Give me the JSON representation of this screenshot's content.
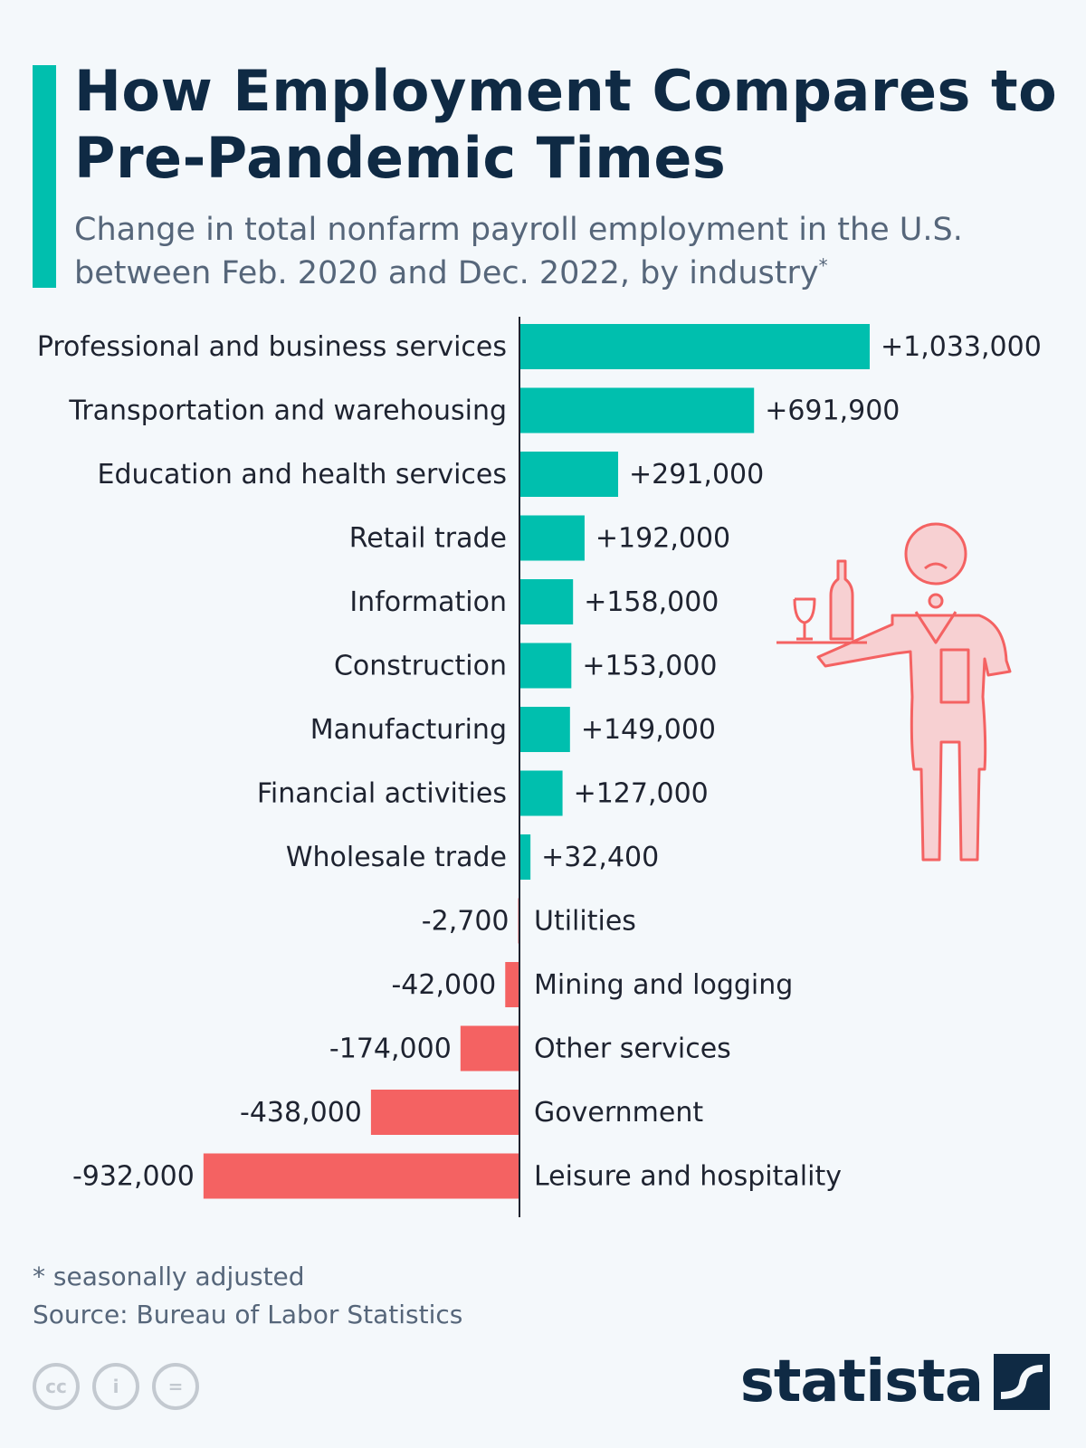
{
  "title": "How Employment Compares to Pre-Pandemic Times",
  "subtitle": "Change in total nonfarm payroll employment in the U.S. between Feb. 2020 and Dec. 2022, by industry",
  "subtitle_mark": "*",
  "colors": {
    "accent": "#00bfae",
    "positive": "#00bfae",
    "negative": "#f46262",
    "axis": "#1e2330",
    "illustration": "#f46262"
  },
  "chart_data": {
    "type": "bar",
    "orientation": "horizontal",
    "title": "How Employment Compares to Pre-Pandemic Times",
    "xlabel": "",
    "ylabel": "",
    "xlim": [
      -932000,
      1033000
    ],
    "categories": [
      "Professional and business services",
      "Transportation and warehousing",
      "Education and health services",
      "Retail trade",
      "Information",
      "Construction",
      "Manufacturing",
      "Financial activities",
      "Wholesale trade",
      "Utilities",
      "Mining and logging",
      "Other services",
      "Government",
      "Leisure and hospitality"
    ],
    "values": [
      1033000,
      691900,
      291000,
      192000,
      158000,
      153000,
      149000,
      127000,
      32400,
      -2700,
      -42000,
      -174000,
      -438000,
      -932000
    ],
    "value_labels": [
      "+1,033,000",
      "+691,900",
      "+291,000",
      "+192,000",
      "+158,000",
      "+153,000",
      "+149,000",
      "+127,000",
      "+32,400",
      "-2,700",
      "-42,000",
      "-174,000",
      "-438,000",
      "-932,000"
    ]
  },
  "footnote": "* seasonally adjusted",
  "source": "Source: Bureau of Labor Statistics",
  "license_icons": [
    "cc-icon",
    "attribution-icon",
    "no-derivatives-icon"
  ],
  "license_glyphs": [
    "cc",
    "i",
    "="
  ],
  "brand": "statista"
}
